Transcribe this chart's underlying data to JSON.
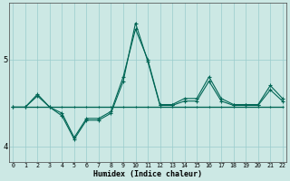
{
  "xlabel": "Humidex (Indice chaleur)",
  "bg_color": "#cce8e4",
  "line_color": "#006655",
  "grid_color": "#99cccc",
  "x_values": [
    0,
    1,
    2,
    3,
    4,
    5,
    6,
    7,
    8,
    9,
    10,
    11,
    12,
    13,
    14,
    15,
    16,
    17,
    18,
    19,
    20,
    21,
    22
  ],
  "line_main": [
    4.45,
    4.45,
    4.6,
    4.45,
    4.35,
    4.08,
    4.3,
    4.3,
    4.38,
    4.75,
    5.42,
    4.98,
    4.47,
    4.47,
    4.52,
    4.52,
    4.75,
    4.52,
    4.47,
    4.47,
    4.47,
    4.65,
    4.52
  ],
  "line_upper": [
    4.45,
    4.45,
    4.58,
    4.45,
    4.38,
    4.1,
    4.32,
    4.32,
    4.4,
    4.8,
    5.35,
    5.0,
    4.48,
    4.48,
    4.55,
    4.55,
    4.8,
    4.55,
    4.48,
    4.48,
    4.48,
    4.7,
    4.55
  ],
  "line_lower": [
    4.45,
    4.45,
    4.45,
    4.45,
    4.45,
    4.45,
    4.45,
    4.45,
    4.45,
    4.45,
    4.45,
    4.45,
    4.45,
    4.45,
    4.45,
    4.45,
    4.45,
    4.45,
    4.45,
    4.45,
    4.45,
    4.45,
    4.45
  ],
  "ylim": [
    3.82,
    5.65
  ],
  "yticks": [
    4,
    5
  ],
  "xlim": [
    -0.3,
    22.3
  ],
  "xtick_labels": [
    "0",
    "1",
    "2",
    "3",
    "4",
    "5",
    "6",
    "7",
    "8",
    "9",
    "10",
    "11",
    "12",
    "13",
    "14",
    "15",
    "16",
    "17",
    "18",
    "19",
    "20",
    "21",
    "22"
  ],
  "figsize": [
    3.2,
    2.0
  ],
  "dpi": 100
}
